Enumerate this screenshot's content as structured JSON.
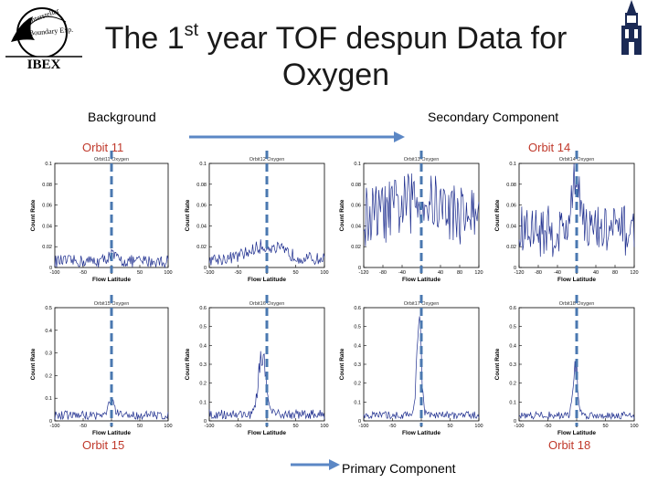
{
  "slide": {
    "title_pre": "The 1",
    "title_sup": "st",
    "title_post": " year TOF despun Data for",
    "title_line2": "Oxygen",
    "background_label": "Background",
    "secondary_label": "Secondary Component",
    "primary_label": "Primary Component",
    "orbit_labels": {
      "tl": "Orbit 11",
      "tr": "Orbit 14",
      "bl": "Orbit 15",
      "br": "Orbit 18"
    },
    "logo_text": "IBEX",
    "logo_ring_text": "Interstellar Boundary Explorer"
  },
  "colors": {
    "series": "#1f2f8f",
    "dashed": "#4a78b0",
    "arrow": "#5b87c5",
    "orbit_label": "#c0392b"
  },
  "chart_data": [
    {
      "type": "line",
      "title": "Orbit11 Oxygen",
      "xlabel": "Flow Latitude",
      "ylabel": "Count Rate",
      "xlim": [
        -100,
        100
      ],
      "ylim": [
        0,
        0.1
      ],
      "xticks": [
        -100,
        -50,
        0,
        50,
        100
      ],
      "yticks": [
        0,
        0.02,
        0.04,
        0.06,
        0.08,
        0.1
      ],
      "ytick_labels": [
        "0",
        "0.02",
        "0.04",
        "0.06",
        "0.08",
        "0.1"
      ],
      "xtick_labels": [
        "-100",
        "-50",
        "0",
        "50",
        "100"
      ],
      "dashed_x": 0,
      "profile": {
        "base": 0.006,
        "noise": 0.006,
        "peak": 0.006,
        "width": 8
      }
    },
    {
      "type": "line",
      "title": "Orbit12 Oxygen",
      "xlabel": "Flow Latitude",
      "ylabel": "Count Rate",
      "xlim": [
        -100,
        100
      ],
      "ylim": [
        0,
        0.1
      ],
      "xticks": [
        -100,
        -50,
        0,
        50,
        100
      ],
      "yticks": [
        0,
        0.02,
        0.04,
        0.06,
        0.08,
        0.1
      ],
      "ytick_labels": [
        "0",
        "0.02",
        "0.04",
        "0.06",
        "0.08",
        "0.1"
      ],
      "xtick_labels": [
        "-100",
        "-50",
        "0",
        "50",
        "100"
      ],
      "dashed_x": 0,
      "profile": {
        "base": 0.008,
        "noise": 0.006,
        "peak": 0.012,
        "width": 30
      }
    },
    {
      "type": "line",
      "title": "Orbit13 Oxygen",
      "xlabel": "Flow Latitude",
      "ylabel": "Count Rate",
      "xlim": [
        -120,
        120
      ],
      "ylim": [
        0,
        0.1
      ],
      "xticks": [
        -120,
        -80,
        -40,
        0,
        40,
        80,
        120
      ],
      "yticks": [
        0,
        0.02,
        0.04,
        0.06,
        0.08,
        0.1
      ],
      "ytick_labels": [
        "0",
        "0.02",
        "0.04",
        "0.06",
        "0.08",
        "0.1"
      ],
      "xtick_labels": [
        "-120",
        "-80",
        "-40",
        "0",
        "40",
        "80",
        "120"
      ],
      "dashed_x": 0,
      "profile": {
        "base": 0.05,
        "noise": 0.03,
        "peak": 0.015,
        "width": 40
      }
    },
    {
      "type": "line",
      "title": "Orbit14 Oxygen",
      "xlabel": "Flow Latitude",
      "ylabel": "Count Rate",
      "xlim": [
        -120,
        120
      ],
      "ylim": [
        0,
        0.1
      ],
      "xticks": [
        -120,
        -80,
        -40,
        0,
        40,
        80,
        120
      ],
      "yticks": [
        0,
        0.02,
        0.04,
        0.06,
        0.08,
        0.1
      ],
      "ytick_labels": [
        "0",
        "0.02",
        "0.04",
        "0.06",
        "0.08",
        "0.1"
      ],
      "xtick_labels": [
        "-120",
        "-80",
        "-40",
        "0",
        "40",
        "80",
        "120"
      ],
      "dashed_x": 0,
      "profile": {
        "base": 0.035,
        "noise": 0.025,
        "peak": 0.05,
        "width": 10
      }
    },
    {
      "type": "line",
      "title": "Orbit15 Oxygen",
      "xlabel": "Flow Latitude",
      "ylabel": "Count Rate",
      "xlim": [
        -100,
        100
      ],
      "ylim": [
        0,
        0.5
      ],
      "xticks": [
        -100,
        -50,
        0,
        50,
        100
      ],
      "yticks": [
        0,
        0.1,
        0.2,
        0.3,
        0.4,
        0.5
      ],
      "ytick_labels": [
        "0",
        "0.1",
        "0.2",
        "0.3",
        "0.4",
        "0.5"
      ],
      "xtick_labels": [
        "-100",
        "-50",
        "0",
        "50",
        "100"
      ],
      "dashed_x": 0,
      "profile": {
        "base": 0.025,
        "noise": 0.02,
        "peak": 0.06,
        "width": 5
      }
    },
    {
      "type": "line",
      "title": "Orbit16 Oxygen",
      "xlabel": "Flow Latitude",
      "ylabel": "Count Rate",
      "xlim": [
        -100,
        100
      ],
      "ylim": [
        0,
        0.6
      ],
      "xticks": [
        -100,
        -50,
        0,
        50,
        100
      ],
      "yticks": [
        0,
        0.1,
        0.2,
        0.3,
        0.4,
        0.5,
        0.6
      ],
      "ytick_labels": [
        "0",
        "0.1",
        "0.2",
        "0.3",
        "0.4",
        "0.5",
        "0.6"
      ],
      "xtick_labels": [
        "-100",
        "-50",
        "0",
        "50",
        "100"
      ],
      "dashed_x": 0,
      "profile": {
        "base": 0.035,
        "noise": 0.025,
        "peak": 0.34,
        "width": 6,
        "center": -8
      }
    },
    {
      "type": "line",
      "title": "Orbit17 Oxygen",
      "xlabel": "Flow Latitude",
      "ylabel": "Count Rate",
      "xlim": [
        -100,
        100
      ],
      "ylim": [
        0,
        0.6
      ],
      "xticks": [
        -100,
        -50,
        0,
        50,
        100
      ],
      "yticks": [
        0,
        0.1,
        0.2,
        0.3,
        0.4,
        0.5,
        0.6
      ],
      "ytick_labels": [
        "0",
        "0.1",
        "0.2",
        "0.3",
        "0.4",
        "0.5",
        "0.6"
      ],
      "xtick_labels": [
        "-100",
        "-50",
        "0",
        "50",
        "100"
      ],
      "dashed_x": 0,
      "profile": {
        "base": 0.03,
        "noise": 0.02,
        "peak": 0.5,
        "width": 4,
        "center": -4
      }
    },
    {
      "type": "line",
      "title": "Orbit18 Oxygen",
      "xlabel": "Flow Latitude",
      "ylabel": "Count Rate",
      "xlim": [
        -100,
        100
      ],
      "ylim": [
        0,
        0.6
      ],
      "xticks": [
        -100,
        -50,
        0,
        50,
        100
      ],
      "yticks": [
        0,
        0.1,
        0.2,
        0.3,
        0.4,
        0.5,
        0.6
      ],
      "ytick_labels": [
        "0",
        "0.1",
        "0.2",
        "0.3",
        "0.4",
        "0.5",
        "0.6"
      ],
      "xtick_labels": [
        "-100",
        "-50",
        "0",
        "50",
        "100"
      ],
      "dashed_x": 0,
      "profile": {
        "base": 0.03,
        "noise": 0.02,
        "peak": 0.26,
        "width": 4,
        "center": -2
      }
    }
  ]
}
